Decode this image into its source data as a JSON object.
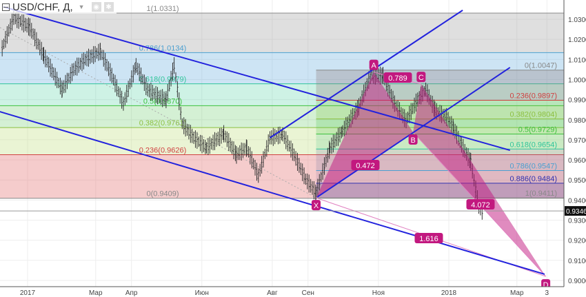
{
  "header": {
    "symbol": "USD/CHF, Д,",
    "dropdown_icon": "caret-down-icon",
    "icons": [
      "eye-icon",
      "gear-icon"
    ]
  },
  "chart_data": {
    "type": "bar",
    "title": "USD/CHF, Д,",
    "price_axis": {
      "ticks": [
        "1.0300",
        "1.0200",
        "1.0100",
        "1.0000",
        "0.9900",
        "0.9800",
        "0.9700",
        "0.9600",
        "0.9500",
        "0.9400",
        "0.9300",
        "0.9200",
        "0.9100",
        "0.9000"
      ],
      "range": [
        0.896,
        1.037
      ]
    },
    "time_axis": {
      "labels": [
        {
          "text": "2017",
          "date": "2017-01-01"
        },
        {
          "text": "Мар",
          "date": "2017-03-01"
        },
        {
          "text": "Апр",
          "date": "2017-04-01"
        },
        {
          "text": "Июн",
          "date": "2017-06-01"
        },
        {
          "text": "Авг",
          "date": "2017-08-01"
        },
        {
          "text": "Сен",
          "date": "2017-09-01"
        },
        {
          "text": "Ноя",
          "date": "2017-11-01"
        },
        {
          "text": "2018",
          "date": "2018-01-01"
        },
        {
          "text": "Мар",
          "date": "2018-03-01"
        },
        {
          "text": "3",
          "date": "2018-03-27"
        }
      ]
    },
    "last_price": "0.9346",
    "closes": [
      [
        "2016-12-10",
        1.0156
      ],
      [
        "2016-12-20",
        1.031
      ],
      [
        "2017-01-03",
        1.026
      ],
      [
        "2017-01-15",
        1.012
      ],
      [
        "2017-01-31",
        0.995
      ],
      [
        "2017-02-10",
        1.005
      ],
      [
        "2017-02-20",
        1.01
      ],
      [
        "2017-03-05",
        1.014
      ],
      [
        "2017-03-15",
        1.002
      ],
      [
        "2017-03-25",
        0.988
      ],
      [
        "2017-04-05",
        1.007
      ],
      [
        "2017-04-15",
        0.995
      ],
      [
        "2017-04-25",
        0.9915
      ],
      [
        "2017-05-01",
        0.99
      ],
      [
        "2017-05-08",
        1.007
      ],
      [
        "2017-05-15",
        0.978
      ],
      [
        "2017-05-25",
        0.971
      ],
      [
        "2017-06-05",
        0.966
      ],
      [
        "2017-06-20",
        0.973
      ],
      [
        "2017-07-01",
        0.9625
      ],
      [
        "2017-07-10",
        0.966
      ],
      [
        "2017-07-20",
        0.9522
      ],
      [
        "2017-07-30",
        0.971
      ],
      [
        "2017-08-10",
        0.9727
      ],
      [
        "2017-08-20",
        0.9625
      ],
      [
        "2017-08-30",
        0.9504
      ],
      [
        "2017-09-08",
        0.9435
      ],
      [
        "2017-09-20",
        0.966
      ],
      [
        "2017-10-01",
        0.9744
      ],
      [
        "2017-10-15",
        0.9864
      ],
      [
        "2017-10-25",
        1.0019
      ],
      [
        "2017-11-05",
        1.002
      ],
      [
        "2017-11-15",
        0.988
      ],
      [
        "2017-11-25",
        0.9796
      ],
      [
        "2017-12-05",
        0.99
      ],
      [
        "2017-12-12",
        0.995
      ],
      [
        "2017-12-20",
        0.9847
      ],
      [
        "2017-12-30",
        0.9813
      ],
      [
        "2018-01-05",
        0.976
      ],
      [
        "2018-01-12",
        0.9675
      ],
      [
        "2018-01-20",
        0.959
      ],
      [
        "2018-01-27",
        0.9367
      ],
      [
        "2018-01-30",
        0.9346
      ]
    ],
    "fib_left": {
      "start": "2016-12-08",
      "end": "2018-03-20",
      "levels": [
        {
          "label": "1(1.0331)",
          "price": 1.0331,
          "color": "#888888",
          "fill": "rgba(150,150,150,0.30)"
        },
        {
          "label": "0.786(1.0134)",
          "price": 1.0134,
          "color": "#4a9fd0",
          "fill": "rgba(100,170,220,0.32)"
        },
        {
          "label": "0.618(0.9979)",
          "price": 0.9979,
          "color": "#2fc59a",
          "fill": "rgba(80,210,160,0.28)"
        },
        {
          "label": "0.5(0.9870)",
          "price": 0.987,
          "color": "#3cc03c",
          "fill": "rgba(100,200,100,0.28)"
        },
        {
          "label": "0.382(0.9761)",
          "price": 0.9761,
          "color": "#8cc040",
          "fill": "rgba(190,220,120,0.32)"
        },
        {
          "label": "0.236(0.9626)",
          "price": 0.9626,
          "color": "#d04040",
          "fill": "rgba(230,120,120,0.38)"
        },
        {
          "label": "0(0.9409)",
          "price": 0.9409,
          "color": "#888888",
          "fill": null
        }
      ]
    },
    "fib_right": {
      "start": "2017-09-08",
      "end": "2018-03-20",
      "levels": [
        {
          "label": "0(1.0047)",
          "price": 1.0047,
          "color": "#888888",
          "fill": "rgba(140,120,120,0.30)"
        },
        {
          "label": "0.236(0.9897)",
          "price": 0.9897,
          "color": "#d04040",
          "fill": "rgba(120,190,60,0.25)"
        },
        {
          "label": "0.382(0.9804)",
          "price": 0.9804,
          "color": "#8cc040",
          "fill": "rgba(60,190,60,0.22)"
        },
        {
          "label": "0.5(0.9729)",
          "price": 0.9729,
          "color": "#3cc03c",
          "fill": "rgba(60,190,120,0.18)"
        },
        {
          "label": "0.618(0.9654)",
          "price": 0.9654,
          "color": "#2fc59a",
          "fill": "rgba(120,120,160,0.22)"
        },
        {
          "label": "0.786(0.9547)",
          "price": 0.9547,
          "color": "#4a9fd0",
          "fill": "rgba(150,120,160,0.22)"
        },
        {
          "label": "0.886(0.9484)",
          "price": 0.9484,
          "color": "#3030b0",
          "fill": "rgba(80,60,150,0.32)"
        },
        {
          "label": "1(0.9411)",
          "price": 0.9411,
          "color": "#888888",
          "fill": null
        }
      ]
    },
    "trendlines": [
      {
        "from": [
          "2016-12-11",
          1.0362
        ],
        "to": [
          "2018-02-23",
          0.9648
        ],
        "color": "#2222dd"
      },
      {
        "from": [
          "2016-12-08",
          0.984
        ],
        "to": [
          "2018-03-25",
          0.9031
        ],
        "color": "#2222dd"
      },
      {
        "from": [
          "2017-07-30",
          0.971
        ],
        "to": [
          "2018-01-13",
          1.0345
        ],
        "color": "#2222dd"
      },
      {
        "from": [
          "2017-09-09",
          0.9415
        ],
        "to": [
          "2018-02-23",
          1.006
        ],
        "color": "#2222dd"
      }
    ],
    "pattern": {
      "color": "#c2187f",
      "points": [
        {
          "label": "X",
          "date": "2017-09-08",
          "price": 0.9411
        },
        {
          "label": "A",
          "date": "2017-10-28",
          "price": 1.0037
        },
        {
          "label": "B",
          "date": "2017-12-01",
          "price": 0.9738
        },
        {
          "label": "C",
          "date": "2017-12-08",
          "price": 0.9977
        },
        {
          "label": "D",
          "date": "2018-03-26",
          "price": 0.902
        }
      ],
      "ratios": [
        {
          "label": "0.789",
          "between": [
            "A",
            "C"
          ]
        },
        {
          "label": "0.472",
          "between": [
            "X",
            "B"
          ]
        },
        {
          "label": "1.616",
          "between": [
            "X",
            "D"
          ]
        },
        {
          "label": "4.072",
          "between": [
            "B",
            "D"
          ]
        }
      ]
    }
  }
}
